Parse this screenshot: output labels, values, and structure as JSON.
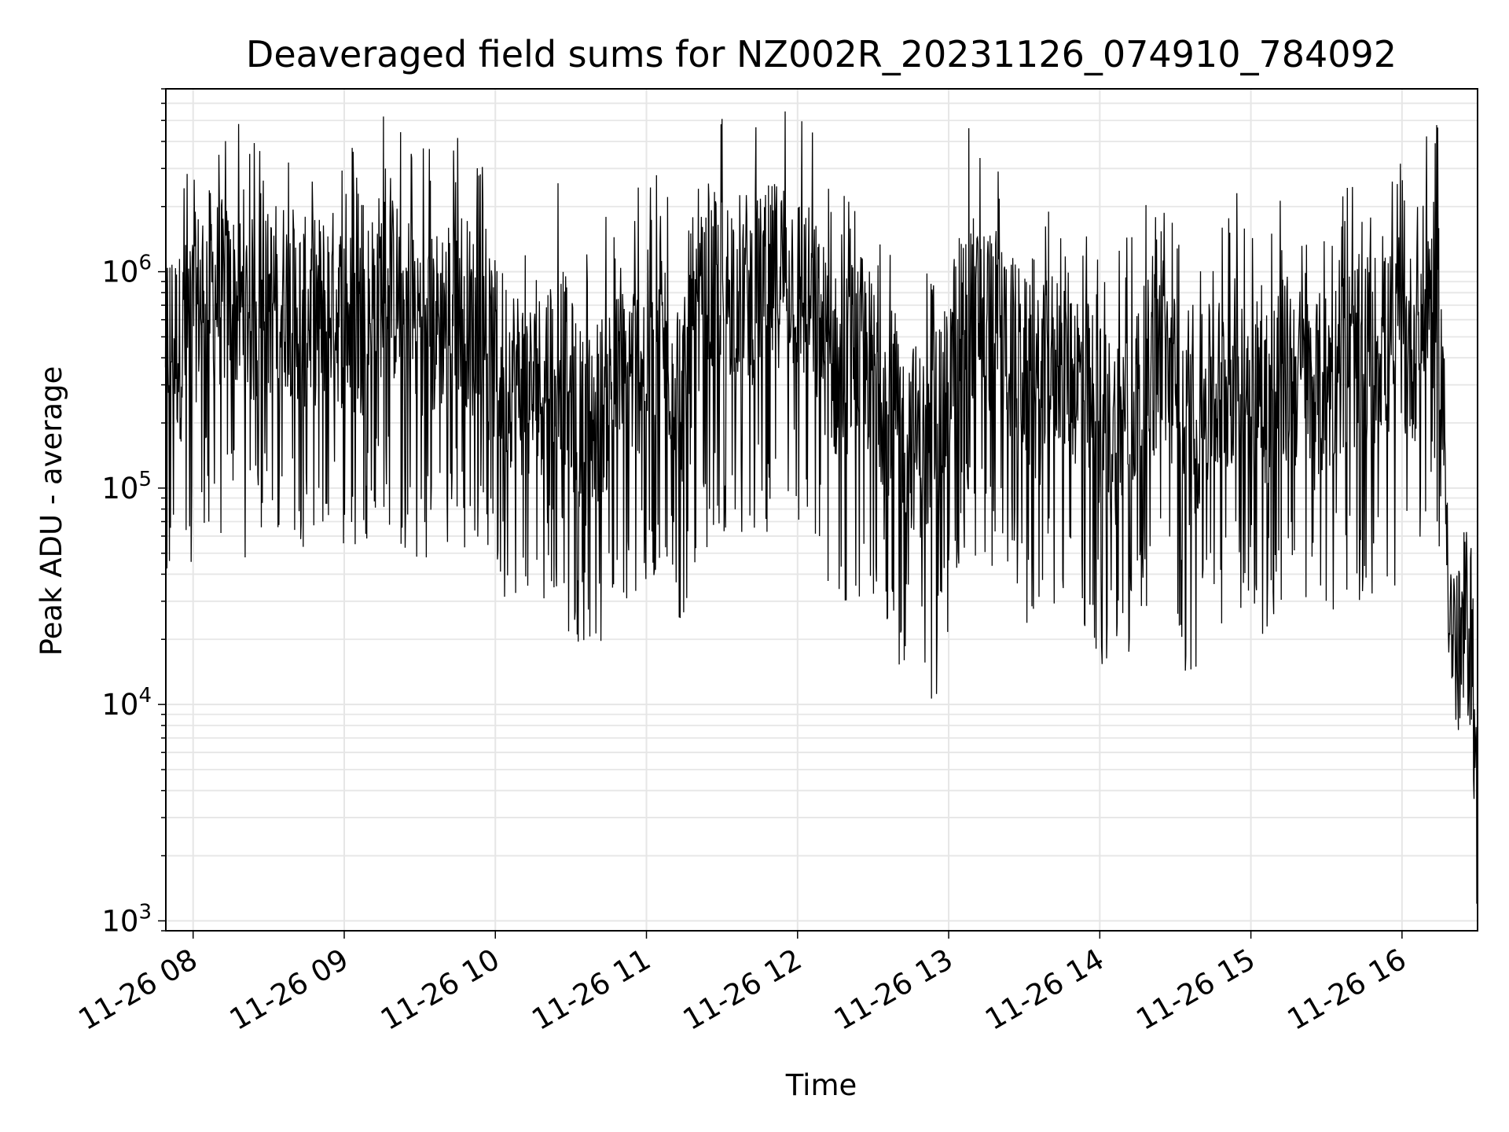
{
  "chart_data": {
    "type": "line",
    "title": "Deaveraged field sums for NZ002R_20231126_074910_784092",
    "xlabel": "Time",
    "ylabel": "Peak ADU - average",
    "yscale": "log",
    "ylim": [
      900,
      7000000
    ],
    "xlim": [
      "2023-11-26 07:49:10",
      "2023-11-26 16:30:00"
    ],
    "grid": true,
    "line_color": "#000000",
    "grid_color": "#e6e6e6",
    "x_ticks": [
      "11-26 08",
      "11-26 09",
      "11-26 10",
      "11-26 11",
      "11-26 12",
      "11-26 13",
      "11-26 14",
      "11-26 15",
      "11-26 16"
    ],
    "y_ticks": [
      {
        "base": "10",
        "exp": "3",
        "value": 1000
      },
      {
        "base": "10",
        "exp": "4",
        "value": 10000
      },
      {
        "base": "10",
        "exp": "5",
        "value": 100000
      },
      {
        "base": "10",
        "exp": "6",
        "value": 1000000
      }
    ],
    "series": [
      {
        "x": [
          "2023-11-26 07:49",
          "2023-11-26 07:55",
          "2023-11-26 08:05",
          "2023-11-26 08:15",
          "2023-11-26 08:25",
          "2023-11-26 08:35",
          "2023-11-26 08:45",
          "2023-11-26 08:55",
          "2023-11-26 09:05",
          "2023-11-26 09:15",
          "2023-11-26 09:25",
          "2023-11-26 09:35",
          "2023-11-26 09:45",
          "2023-11-26 09:55",
          "2023-11-26 10:05",
          "2023-11-26 10:15",
          "2023-11-26 10:25",
          "2023-11-26 10:35",
          "2023-11-26 10:45",
          "2023-11-26 10:55",
          "2023-11-26 11:05",
          "2023-11-26 11:15",
          "2023-11-26 11:25",
          "2023-11-26 11:35",
          "2023-11-26 11:45",
          "2023-11-26 11:55",
          "2023-11-26 12:05",
          "2023-11-26 12:15",
          "2023-11-26 12:25",
          "2023-11-26 12:35",
          "2023-11-26 12:45",
          "2023-11-26 12:55",
          "2023-11-26 13:05",
          "2023-11-26 13:15",
          "2023-11-26 13:25",
          "2023-11-26 13:35",
          "2023-11-26 13:45",
          "2023-11-26 13:55",
          "2023-11-26 14:05",
          "2023-11-26 14:15",
          "2023-11-26 14:25",
          "2023-11-26 14:35",
          "2023-11-26 14:45",
          "2023-11-26 14:55",
          "2023-11-26 15:05",
          "2023-11-26 15:15",
          "2023-11-26 15:25",
          "2023-11-26 15:35",
          "2023-11-26 15:45",
          "2023-11-26 15:55",
          "2023-11-26 16:05",
          "2023-11-26 16:10",
          "2023-11-26 16:15",
          "2023-11-26 16:18",
          "2023-11-26 16:20",
          "2023-11-26 16:23",
          "2023-11-26 16:25",
          "2023-11-26 16:28",
          "2023-11-26 16:30"
        ],
        "y": [
          600000,
          500000,
          1000000,
          800000,
          700000,
          900000,
          700000,
          800000,
          600000,
          1000000,
          800000,
          600000,
          900000,
          500000,
          400000,
          300000,
          500000,
          200000,
          300000,
          400000,
          600000,
          300000,
          900000,
          1000000,
          900000,
          1200000,
          800000,
          400000,
          500000,
          300000,
          200000,
          150000,
          800000,
          700000,
          500000,
          300000,
          500000,
          300000,
          200000,
          300000,
          500000,
          200000,
          300000,
          400000,
          300000,
          400000,
          300000,
          400000,
          500000,
          500000,
          500000,
          1000000,
          700000,
          60000,
          20000,
          15000,
          25000,
          20000,
          1500
        ]
      }
    ]
  }
}
